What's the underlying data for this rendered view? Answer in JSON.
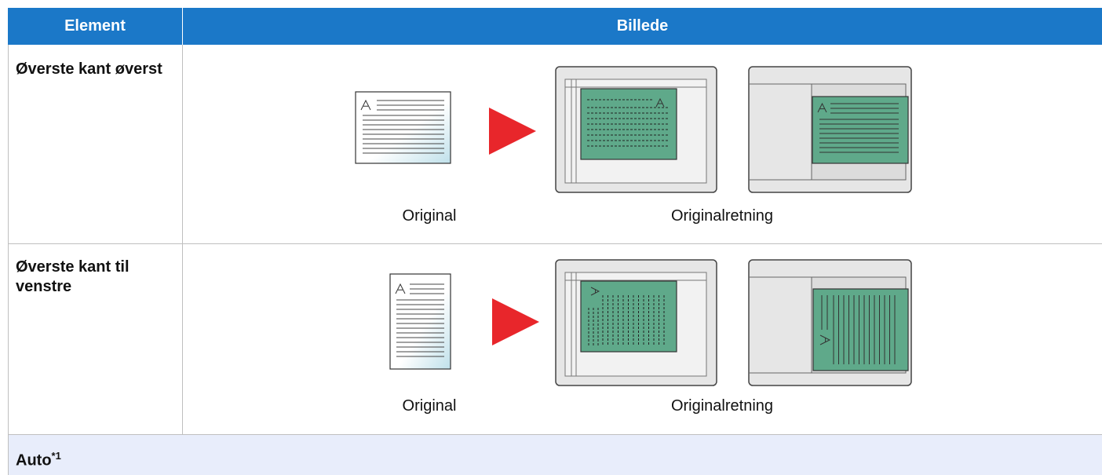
{
  "table": {
    "header": [
      "Element",
      "Billede"
    ],
    "rows": [
      {
        "element": "Øverste kant øverst",
        "captions": [
          "Original",
          "Originalretning"
        ]
      },
      {
        "element": "Øverste kant til venstre",
        "captions": [
          "Original",
          "Originalretning"
        ]
      }
    ],
    "footer": {
      "element": "Auto",
      "note": "*1"
    }
  }
}
